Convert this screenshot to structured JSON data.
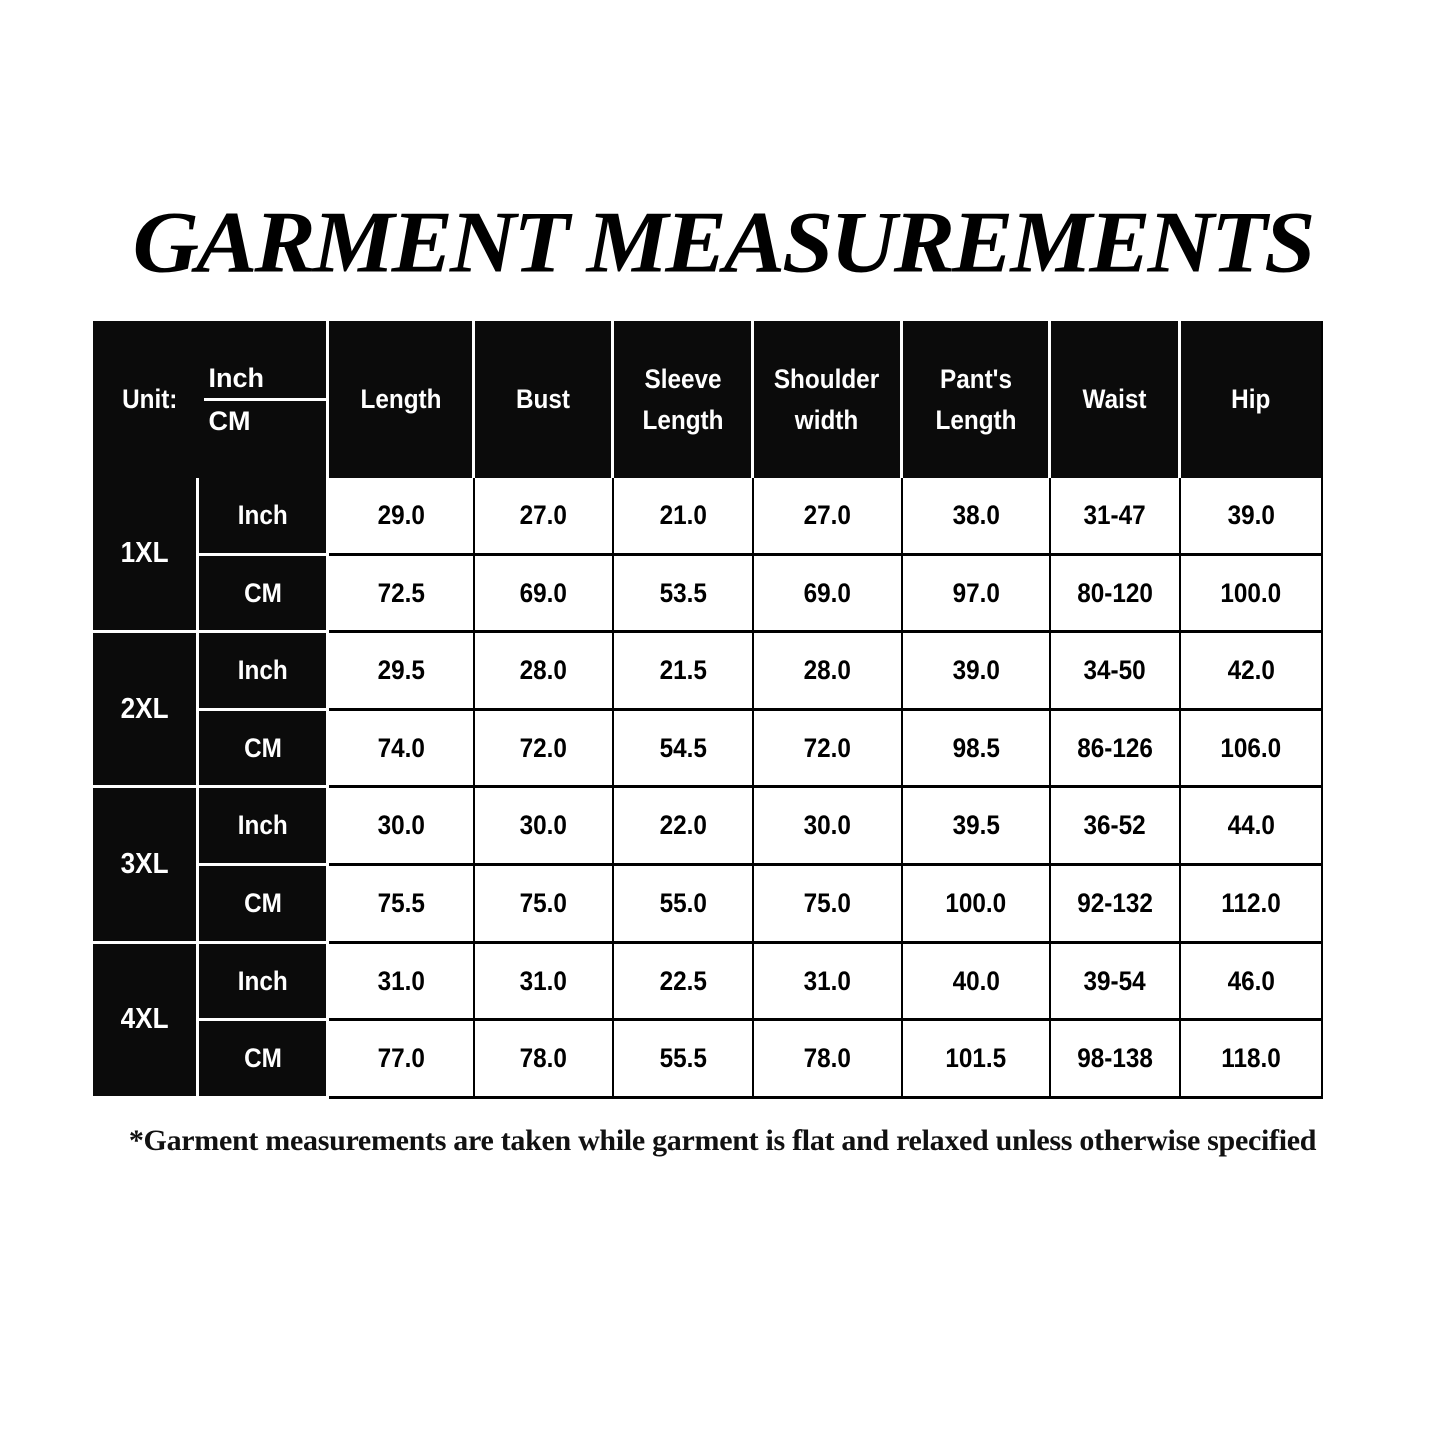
{
  "title": "GARMENT MEASUREMENTS",
  "table": {
    "unit_label": "Unit:",
    "unit_top": "Inch",
    "unit_bottom": "CM",
    "columns": [
      "Length",
      "Bust",
      "Sleeve\nLength",
      "Shoulder\nwidth",
      "Pant's\nLength",
      "Waist",
      "Hip"
    ],
    "sizes": [
      {
        "size": "1XL",
        "rows": [
          {
            "unit": "Inch",
            "values": [
              "29.0",
              "27.0",
              "21.0",
              "27.0",
              "38.0",
              "31-47",
              "39.0"
            ]
          },
          {
            "unit": "CM",
            "values": [
              "72.5",
              "69.0",
              "53.5",
              "69.0",
              "97.0",
              "80-120",
              "100.0"
            ]
          }
        ]
      },
      {
        "size": "2XL",
        "rows": [
          {
            "unit": "Inch",
            "values": [
              "29.5",
              "28.0",
              "21.5",
              "28.0",
              "39.0",
              "34-50",
              "42.0"
            ]
          },
          {
            "unit": "CM",
            "values": [
              "74.0",
              "72.0",
              "54.5",
              "72.0",
              "98.5",
              "86-126",
              "106.0"
            ]
          }
        ]
      },
      {
        "size": "3XL",
        "rows": [
          {
            "unit": "Inch",
            "values": [
              "30.0",
              "30.0",
              "22.0",
              "30.0",
              "39.5",
              "36-52",
              "44.0"
            ]
          },
          {
            "unit": "CM",
            "values": [
              "75.5",
              "75.0",
              "55.0",
              "75.0",
              "100.0",
              "92-132",
              "112.0"
            ]
          }
        ]
      },
      {
        "size": "4XL",
        "rows": [
          {
            "unit": "Inch",
            "values": [
              "31.0",
              "31.0",
              "22.5",
              "31.0",
              "40.0",
              "39-54",
              "46.0"
            ]
          },
          {
            "unit": "CM",
            "values": [
              "77.0",
              "78.0",
              "55.5",
              "78.0",
              "101.5",
              "98-138",
              "118.0"
            ]
          }
        ]
      }
    ]
  },
  "footnote": "*Garment measurements are taken while garment is flat and relaxed unless otherwise specified"
}
